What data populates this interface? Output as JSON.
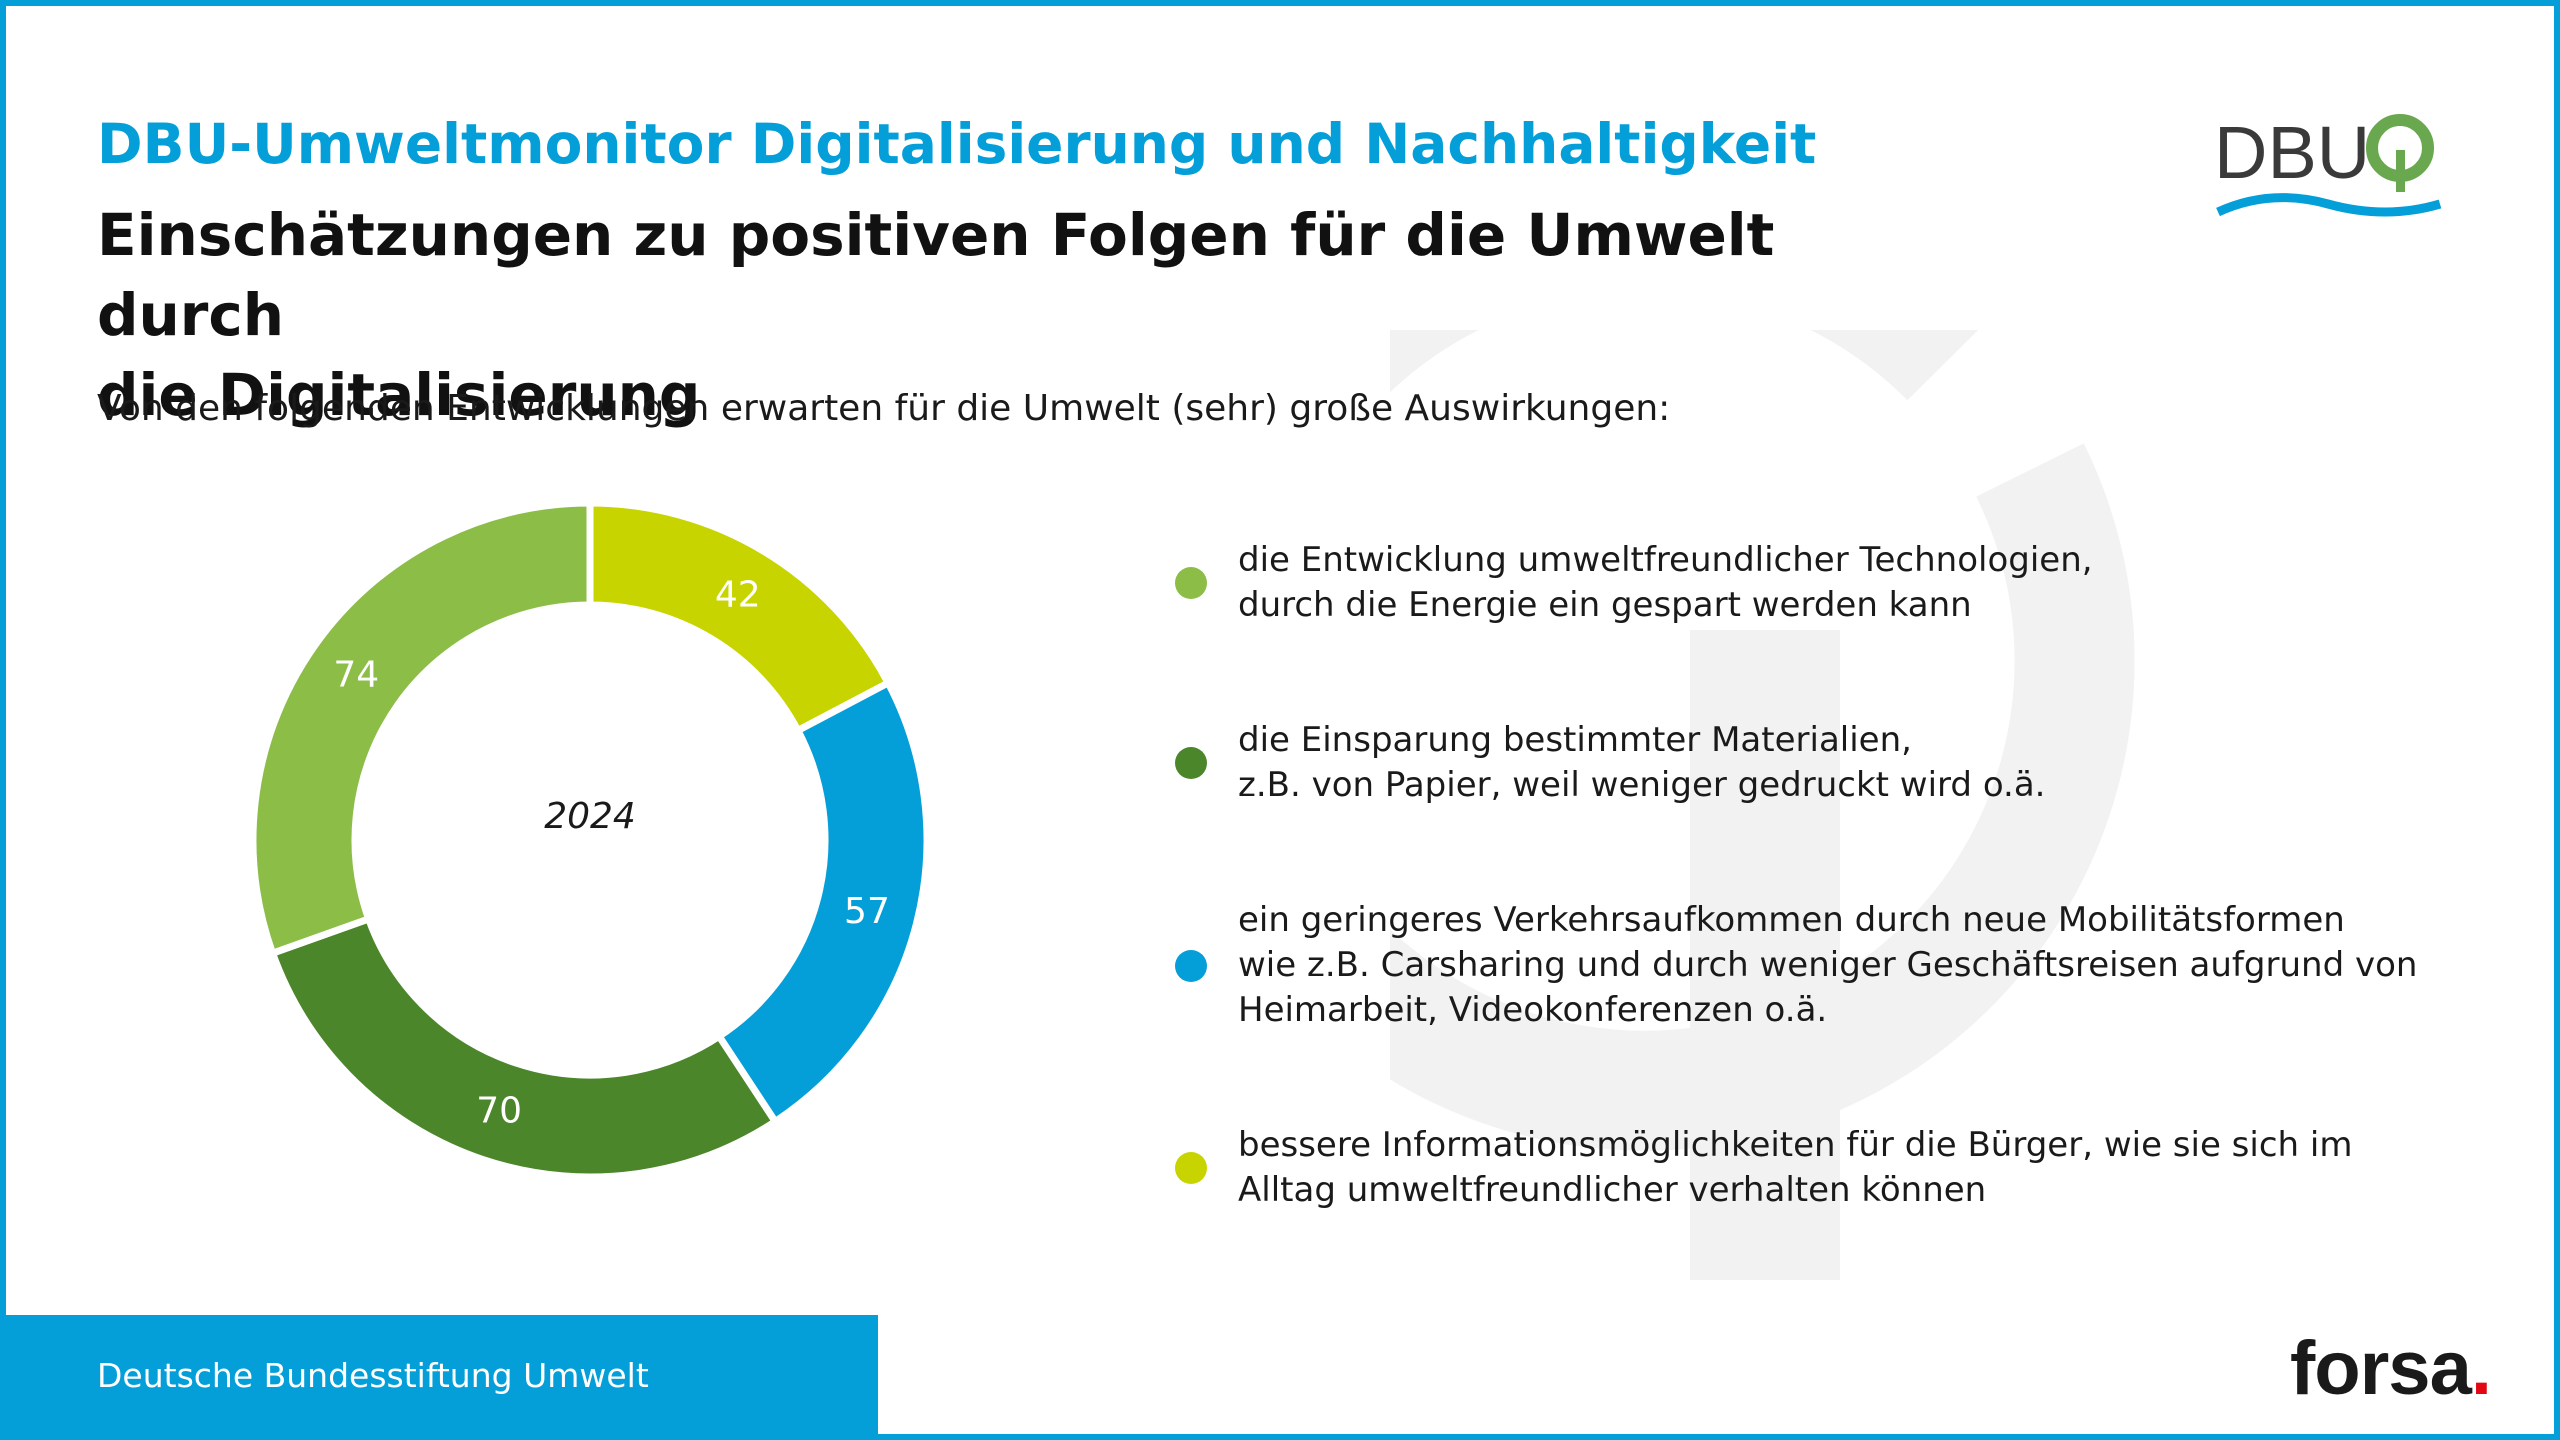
{
  "header": {
    "supertitle": "DBU-Umweltmonitor Digitalisierung und Nachhaltigkeit",
    "title_line1": "Einschätzungen zu positiven Folgen für die Umwelt durch",
    "title_line2": "die Digitalisierung",
    "subtitle": "Von den folgenden Entwicklungen erwarten für die Umwelt (sehr) große Auswirkungen:"
  },
  "logo": {
    "text": "DBU"
  },
  "chart_data": {
    "type": "pie",
    "variant": "donut",
    "center_label": "2024",
    "slices": [
      {
        "label": "bessere Informationsmöglichkeiten für die Bürger, wie sie sich im\nAlltag umweltfreundlicher verhalten können",
        "value": 42,
        "color": "#c8d400"
      },
      {
        "label": "ein geringeres Verkehrsaufkommen durch neue Mobilitätsformen\nwie z.B. Carsharing und durch weniger Geschäftsreisen aufgrund von\nHeimarbeit, Videokonferenzen o.ä.",
        "value": 57,
        "color": "#049fd9"
      },
      {
        "label": "die Einsparung bestimmter Materialien,\nz.B. von Papier, weil weniger gedruckt wird o.ä.",
        "value": 70,
        "color": "#4c862a"
      },
      {
        "label": "die Entwicklung umweltfreundlicher Technologien,\ndurch die Energie ein gespart werden kann",
        "value": 74,
        "color": "#8bbd47"
      }
    ],
    "legend_order": [
      3,
      2,
      1,
      0
    ],
    "legend_placement": "right"
  },
  "footer": {
    "organization": "Deutsche Bundesstiftung Umwelt",
    "partner_logo": "forsa",
    "partner_logo_dot": "."
  },
  "colors": {
    "accent": "#049fd9",
    "light_green": "#8bbd47",
    "dark_green": "#4c862a",
    "yellow_green": "#c8d400",
    "brand_red": "#e30613"
  }
}
